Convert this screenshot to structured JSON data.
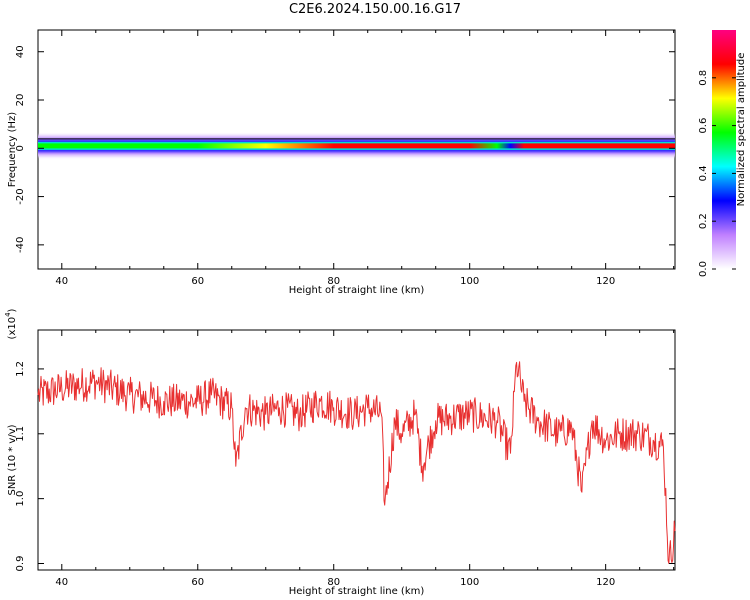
{
  "title": "C2E6.2024.150.00.16.G17",
  "chart_data": [
    {
      "type": "heatmap",
      "xlabel": "Height of straight line (km)",
      "ylabel": "Frequency (Hz)",
      "xlim": [
        36.5,
        130.2
      ],
      "ylim": [
        -50,
        49
      ],
      "xticks": [
        40,
        60,
        80,
        100,
        120
      ],
      "yticks": [
        -40,
        -20,
        0,
        20,
        40
      ],
      "ytick_labels": [
        "-40",
        "-20",
        "0",
        "20",
        "40"
      ],
      "description": "Energy concentrated near 0-2 Hz across all heights; strongest (red) between ~72 and ~130 km.",
      "band": {
        "center_hz": 1,
        "x_breaks": [
          36.5,
          50,
          60,
          70,
          80,
          90,
          100,
          104,
          106,
          108,
          115,
          125,
          130.2
        ],
        "peak_amplitude": [
          0.55,
          0.55,
          0.6,
          0.75,
          0.85,
          0.9,
          0.9,
          0.6,
          0.3,
          0.9,
          0.9,
          0.9,
          0.9
        ]
      },
      "colorbar": {
        "label": "Normalized spectral amplitude",
        "range": [
          0,
          1
        ],
        "ticks": [
          0.0,
          0.2,
          0.4,
          0.6,
          0.8
        ],
        "tick_labels": [
          "0.0",
          "0.2",
          "0.4",
          "0.6",
          "0.8"
        ],
        "colors": [
          "#ffffff",
          "#c080ff",
          "#0000ff",
          "#00ffff",
          "#00ff00",
          "#ffff00",
          "#ff0000",
          "#ff0080"
        ]
      }
    },
    {
      "type": "line",
      "xlabel": "Height of straight line (km)",
      "ylabel": "SNR (10 * v/v)",
      "exponent_label": "(x10",
      "exponent_power": "4",
      "exponent_close": ")",
      "xlim": [
        36.5,
        130.2
      ],
      "ylim": [
        0.89,
        1.26
      ],
      "xticks": [
        40,
        60,
        80,
        100,
        120
      ],
      "yticks": [
        0.9,
        1.0,
        1.1,
        1.2
      ],
      "ytick_labels": [
        "0.9",
        "1.0",
        "1.1",
        "1.2"
      ],
      "color": "#e83030",
      "series": [
        {
          "x": [
            36.5,
            40,
            45,
            50,
            55,
            60,
            62,
            65,
            65.6,
            67,
            70,
            72,
            75,
            78,
            80,
            83,
            85,
            87,
            87.5,
            89,
            90,
            92,
            93,
            95,
            100,
            104,
            106,
            106.9,
            108,
            110,
            113,
            115,
            116.5,
            118,
            120,
            122,
            125,
            127,
            128.5,
            129.3,
            130.2
          ],
          "y": [
            1.16,
            1.17,
            1.18,
            1.16,
            1.15,
            1.15,
            1.16,
            1.14,
            1.05,
            1.14,
            1.13,
            1.14,
            1.13,
            1.15,
            1.14,
            1.13,
            1.14,
            1.13,
            0.99,
            1.12,
            1.1,
            1.13,
            1.05,
            1.12,
            1.13,
            1.12,
            1.07,
            1.21,
            1.15,
            1.12,
            1.1,
            1.11,
            1.01,
            1.12,
            1.09,
            1.1,
            1.1,
            1.09,
            1.08,
            0.9,
            0.95
          ]
        }
      ]
    }
  ]
}
